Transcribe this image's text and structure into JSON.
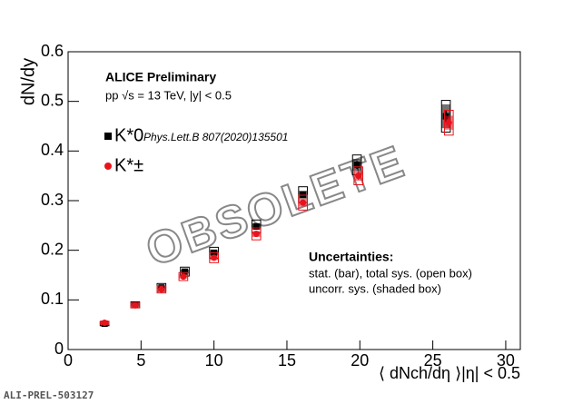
{
  "chart_data": {
    "type": "scatter",
    "header": "ALICE Preliminary",
    "subtitle": "pp √s = 13 TeV, |y| < 0.5",
    "x_label": "⟨ dNch/dη ⟩|η| < 0.5",
    "y_label": "dN/dy",
    "xlim": [
      0,
      31
    ],
    "ylim": [
      0,
      0.6
    ],
    "xticks": [
      0,
      5,
      10,
      15,
      20,
      25,
      30
    ],
    "yticks": [
      0,
      0.1,
      0.2,
      0.3,
      0.4,
      0.5,
      0.6
    ],
    "series": [
      {
        "name": "K*0",
        "reference": "Phys.Lett.B 807(2020)135501",
        "color": "#000000",
        "marker": "square",
        "x": [
          2.5,
          4.6,
          6.4,
          8.0,
          10.0,
          12.9,
          16.1,
          19.8,
          25.9
        ],
        "values": [
          0.052,
          0.09,
          0.125,
          0.157,
          0.195,
          0.248,
          0.312,
          0.372,
          0.47
        ],
        "stat": [
          0.002,
          0.003,
          0.004,
          0.004,
          0.005,
          0.006,
          0.006,
          0.008,
          0.012
        ],
        "sys": [
          0.004,
          0.006,
          0.008,
          0.009,
          0.011,
          0.013,
          0.016,
          0.02,
          0.032
        ],
        "sys_uncorr": [
          0.002,
          0.003,
          0.004,
          0.004,
          0.005,
          0.006,
          0.008,
          0.012,
          0.024
        ]
      },
      {
        "name": "K*±",
        "color": "#e8141c",
        "marker": "circle",
        "x": [
          2.5,
          4.6,
          6.4,
          7.9,
          10.0,
          12.9,
          16.1,
          19.9,
          26.1
        ],
        "values": [
          0.054,
          0.089,
          0.121,
          0.147,
          0.185,
          0.233,
          0.296,
          0.35,
          0.457
        ],
        "stat": [
          0.002,
          0.002,
          0.003,
          0.004,
          0.004,
          0.005,
          0.006,
          0.008,
          0.01
        ],
        "sys": [
          0.003,
          0.005,
          0.007,
          0.008,
          0.01,
          0.012,
          0.015,
          0.018,
          0.025
        ],
        "sys_uncorr": [
          0.002,
          0.003,
          0.004,
          0.004,
          0.005,
          0.006,
          0.008,
          0.01,
          0.014
        ]
      }
    ],
    "annotations": [
      "Uncertainties:",
      "stat. (bar), total sys. (open box)",
      "uncorr. sys. (shaded box)"
    ],
    "watermark": "OBSOLETE",
    "footer": "ALI-PREL-503127"
  }
}
